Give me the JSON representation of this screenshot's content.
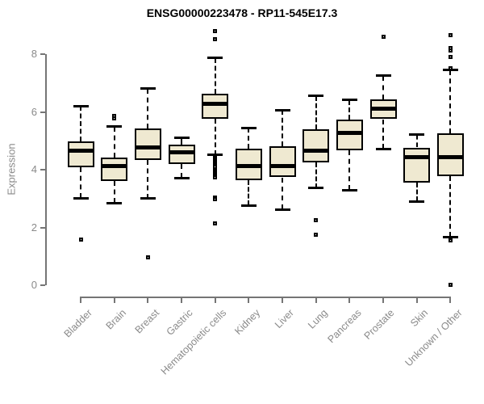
{
  "title": "ENSG00000223478 - RP11-545E17.3",
  "chart_data": {
    "type": "boxplot",
    "title": "ENSG00000223478 - RP11-545E17.3",
    "xlabel": "",
    "ylabel": "Expression",
    "ylim": [
      0,
      8.8
    ],
    "yticks": [
      0,
      2,
      4,
      6,
      8
    ],
    "grid": false,
    "legend": "none",
    "whisker_line_style": "dashed",
    "outlier_marker": "open-square",
    "categories": [
      "Bladder",
      "Brain",
      "Breast",
      "Gastric",
      "Hematopoietic cells",
      "Kidney",
      "Liver",
      "Lung",
      "Pancreas",
      "Prostate",
      "Skin",
      "Unknown / Other"
    ],
    "boxes": [
      {
        "category": "Bladder",
        "whisker_low": 3.02,
        "q1": 4.1,
        "median": 4.67,
        "q3": 4.99,
        "whisker_high": 6.2,
        "outliers": [
          1.58
        ]
      },
      {
        "category": "Brain",
        "whisker_low": 2.85,
        "q1": 3.61,
        "median": 4.12,
        "q3": 4.42,
        "whisker_high": 5.5,
        "outliers": [
          5.85,
          5.78
        ]
      },
      {
        "category": "Breast",
        "whisker_low": 3.0,
        "q1": 4.33,
        "median": 4.78,
        "q3": 5.43,
        "whisker_high": 6.8,
        "outliers": [
          0.96
        ]
      },
      {
        "category": "Gastric",
        "whisker_low": 3.72,
        "q1": 4.21,
        "median": 4.61,
        "q3": 4.87,
        "whisker_high": 5.12,
        "outliers": []
      },
      {
        "category": "Hematopoietic cells",
        "whisker_low": 4.51,
        "q1": 5.77,
        "median": 6.27,
        "q3": 6.63,
        "whisker_high": 7.87,
        "outliers": [
          8.79,
          8.53,
          4.45,
          4.39,
          4.33,
          4.27,
          4.21,
          4.15,
          4.09,
          4.03,
          3.97,
          3.91,
          3.85,
          3.79,
          3.73,
          3.03,
          2.98,
          2.14
        ]
      },
      {
        "category": "Kidney",
        "whisker_low": 2.77,
        "q1": 3.65,
        "median": 4.14,
        "q3": 4.72,
        "whisker_high": 5.45,
        "outliers": []
      },
      {
        "category": "Liver",
        "whisker_low": 2.63,
        "q1": 3.74,
        "median": 4.12,
        "q3": 4.82,
        "whisker_high": 6.07,
        "outliers": []
      },
      {
        "category": "Lung",
        "whisker_low": 3.37,
        "q1": 4.26,
        "median": 4.65,
        "q3": 5.4,
        "whisker_high": 6.56,
        "outliers": [
          2.26,
          1.77
        ]
      },
      {
        "category": "Pancreas",
        "whisker_low": 3.3,
        "q1": 4.67,
        "median": 5.29,
        "q3": 5.75,
        "whisker_high": 6.42,
        "outliers": []
      },
      {
        "category": "Prostate",
        "whisker_low": 4.72,
        "q1": 5.75,
        "median": 6.12,
        "q3": 6.44,
        "whisker_high": 7.26,
        "outliers": [
          8.61
        ]
      },
      {
        "category": "Skin",
        "whisker_low": 2.91,
        "q1": 3.56,
        "median": 4.44,
        "q3": 4.77,
        "whisker_high": 5.21,
        "outliers": []
      },
      {
        "category": "Unknown / Other",
        "whisker_low": 1.68,
        "q1": 3.79,
        "median": 4.44,
        "q3": 5.26,
        "whisker_high": 7.45,
        "outliers": [
          8.66,
          8.22,
          8.14,
          7.91,
          7.52,
          1.55,
          0.02
        ]
      }
    ],
    "colors": {
      "box_fill": "#efe9d1",
      "box_border": "#000000",
      "median": "#000000",
      "axis": "#757575",
      "tick_label": "#8a8a8a",
      "title": "#000000"
    }
  }
}
